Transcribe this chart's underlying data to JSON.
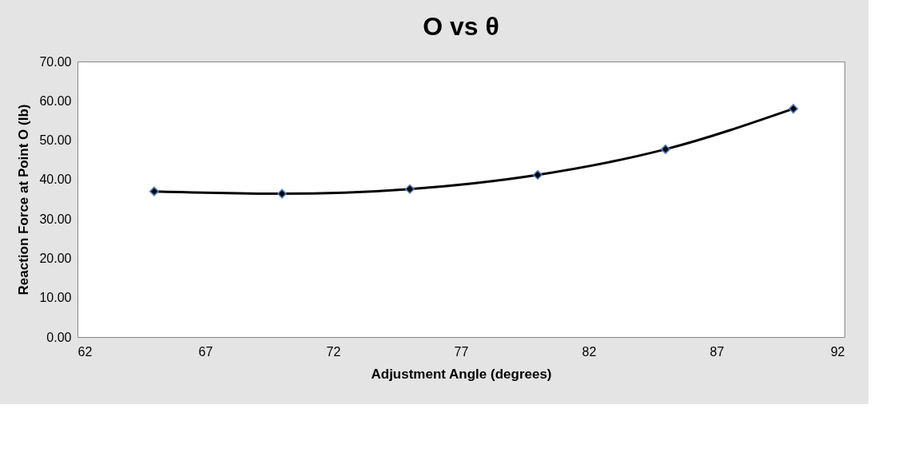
{
  "chart_data": {
    "type": "line",
    "title": "O vs θ",
    "xlabel": "Adjustment Angle (degrees)",
    "ylabel": "Reaction Force at Point O (lb)",
    "x": [
      65,
      70,
      75,
      80,
      85,
      90
    ],
    "series": [
      {
        "color": "#000000",
        "values": [
          37.0,
          36.4,
          37.6,
          41.2,
          47.7,
          58.0
        ]
      }
    ],
    "xlim": [
      62,
      92
    ],
    "xticks": [
      62,
      67,
      72,
      77,
      82,
      87,
      92
    ],
    "ylim": [
      0,
      70
    ],
    "yticks": [
      {
        "value": 0,
        "label": "0.00"
      },
      {
        "value": 10,
        "label": "10.00"
      },
      {
        "value": 20,
        "label": "20.00"
      },
      {
        "value": 30,
        "label": "30.00"
      },
      {
        "value": 40,
        "label": "40.00"
      },
      {
        "value": 50,
        "label": "50.00"
      },
      {
        "value": 60,
        "label": "60.00"
      },
      {
        "value": 70,
        "label": "70.00"
      }
    ],
    "grid": false,
    "marker": "diamond",
    "line_style": "solid"
  }
}
